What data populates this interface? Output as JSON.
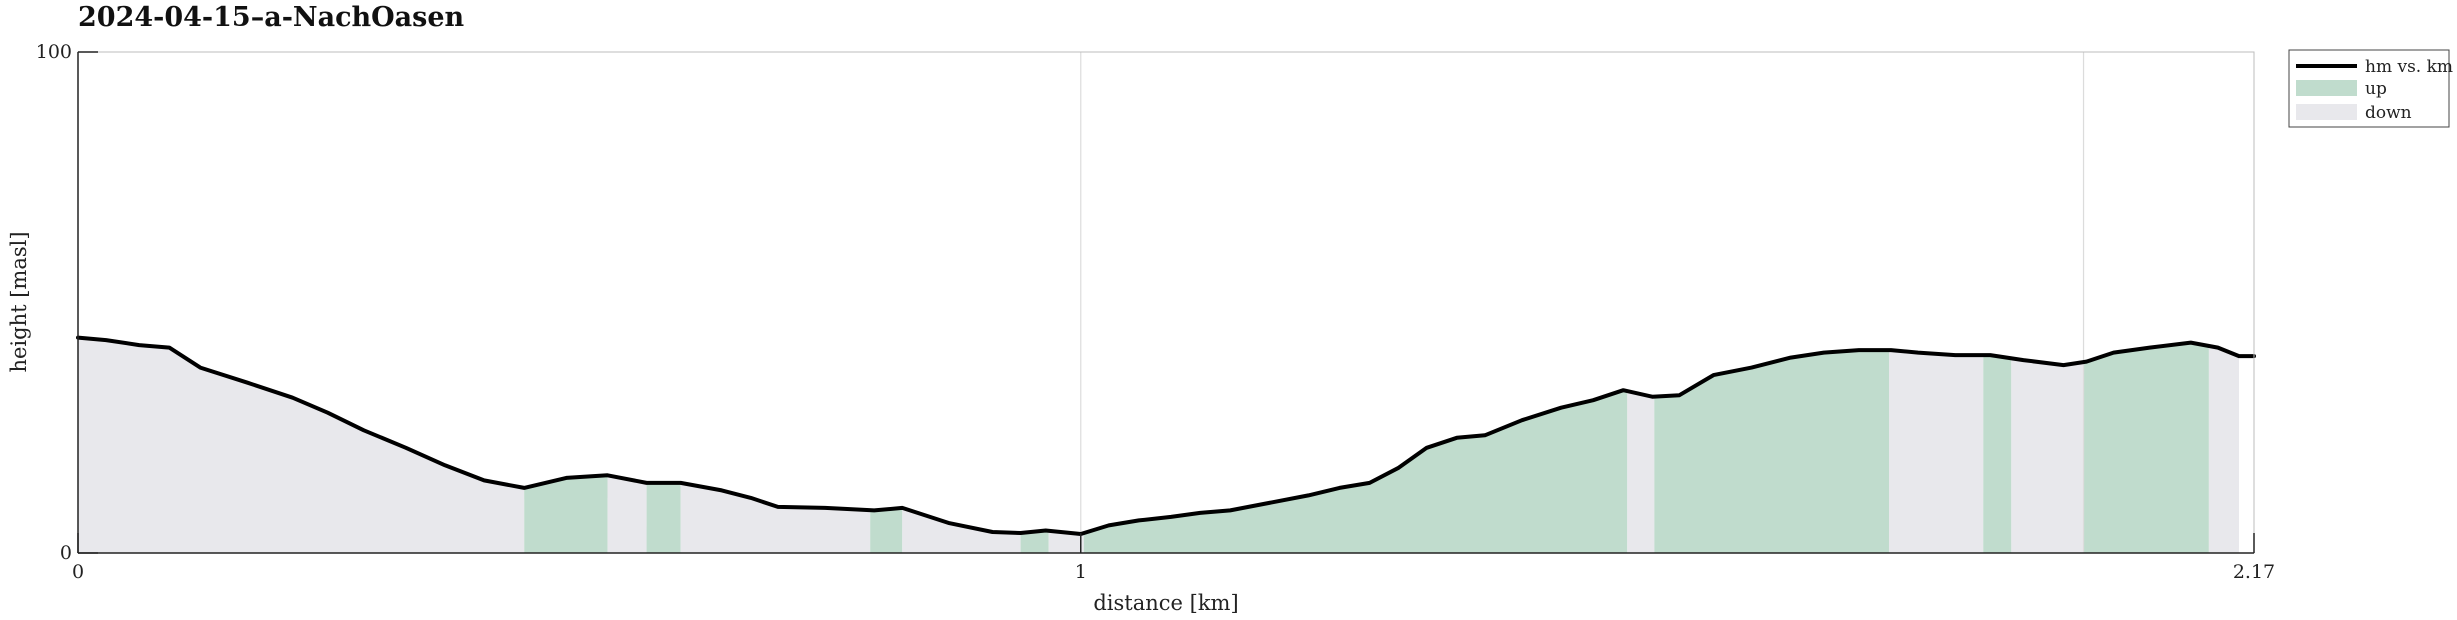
{
  "chart_data": {
    "type": "area",
    "title": "2024-04-15–a-NachOasen",
    "xlabel": "distance [km]",
    "ylabel": "height [masl]",
    "xlim": [
      0,
      2.17
    ],
    "ylim": [
      0,
      100
    ],
    "x_ticks": [
      0,
      1,
      2.17
    ],
    "x_tick_labels": [
      "0",
      "1",
      "2.17"
    ],
    "y_ticks": [
      0,
      100
    ],
    "y_tick_labels": [
      "0",
      "100"
    ],
    "x_gridlines": [
      1,
      2.0
    ],
    "legend": {
      "placement": "outside-top-right",
      "entries": [
        {
          "label": "hm vs. km",
          "kind": "line",
          "color": "#000000"
        },
        {
          "label": "up",
          "kind": "patch",
          "color": "#c0dccd"
        },
        {
          "label": "down",
          "kind": "patch",
          "color": "#e8e8ec"
        }
      ]
    },
    "series": [
      {
        "name": "hm vs. km",
        "x": [
          0,
          0.028,
          0.061,
          0.091,
          0.122,
          0.169,
          0.214,
          0.249,
          0.285,
          0.327,
          0.366,
          0.405,
          0.445,
          0.487,
          0.528,
          0.567,
          0.601,
          0.642,
          0.671,
          0.698,
          0.745,
          0.794,
          0.822,
          0.868,
          0.912,
          0.94,
          0.965,
          1.0,
          1.028,
          1.058,
          1.09,
          1.119,
          1.149,
          1.188,
          1.227,
          1.258,
          1.288,
          1.317,
          1.345,
          1.375,
          1.403,
          1.44,
          1.479,
          1.511,
          1.541,
          1.57,
          1.597,
          1.631,
          1.669,
          1.708,
          1.741,
          1.776,
          1.808,
          1.835,
          1.872,
          1.907,
          1.94,
          1.98,
          2.003,
          2.03,
          2.066,
          2.107,
          2.134,
          2.155,
          2.17
        ],
        "y": [
          43,
          42.5,
          41.5,
          41,
          37,
          34,
          31,
          28,
          24.5,
          21,
          17.5,
          14.5,
          13,
          15,
          15.5,
          14,
          14,
          12.5,
          11,
          9.2,
          9,
          8.5,
          9,
          6,
          4.2,
          4,
          4.5,
          3.8,
          5.5,
          6.5,
          7.2,
          8,
          8.5,
          10,
          11.5,
          13,
          14,
          17,
          21,
          23,
          23.5,
          26.5,
          29,
          30.5,
          32.5,
          31.2,
          31.5,
          35.5,
          37,
          39,
          40,
          40.5,
          40.5,
          40,
          39.5,
          39.5,
          38.5,
          37.5,
          38.2,
          40,
          41,
          42,
          41,
          39.3,
          39.3
        ]
      }
    ],
    "segments": [
      {
        "from": 0,
        "to": 0.445,
        "dir": "down"
      },
      {
        "from": 0.445,
        "to": 0.528,
        "dir": "up"
      },
      {
        "from": 0.528,
        "to": 0.567,
        "dir": "down"
      },
      {
        "from": 0.567,
        "to": 0.601,
        "dir": "up"
      },
      {
        "from": 0.601,
        "to": 0.79,
        "dir": "down"
      },
      {
        "from": 0.79,
        "to": 0.822,
        "dir": "up"
      },
      {
        "from": 0.822,
        "to": 0.94,
        "dir": "down"
      },
      {
        "from": 0.94,
        "to": 0.968,
        "dir": "up"
      },
      {
        "from": 0.968,
        "to": 1.003,
        "dir": "down"
      },
      {
        "from": 1.003,
        "to": 1.545,
        "dir": "up"
      },
      {
        "from": 1.545,
        "to": 1.572,
        "dir": "down"
      },
      {
        "from": 1.572,
        "to": 1.806,
        "dir": "up"
      },
      {
        "from": 1.806,
        "to": 1.9,
        "dir": "down"
      },
      {
        "from": 1.9,
        "to": 1.928,
        "dir": "up"
      },
      {
        "from": 1.928,
        "to": 2.0,
        "dir": "down"
      },
      {
        "from": 2.0,
        "to": 2.125,
        "dir": "up"
      },
      {
        "from": 2.125,
        "to": 2.155,
        "dir": "down"
      }
    ],
    "colors": {
      "up": "#c0dccd",
      "down": "#e8e8ec",
      "line": "#000000",
      "grid": "#dcdcdc",
      "axis": "#222222"
    }
  }
}
